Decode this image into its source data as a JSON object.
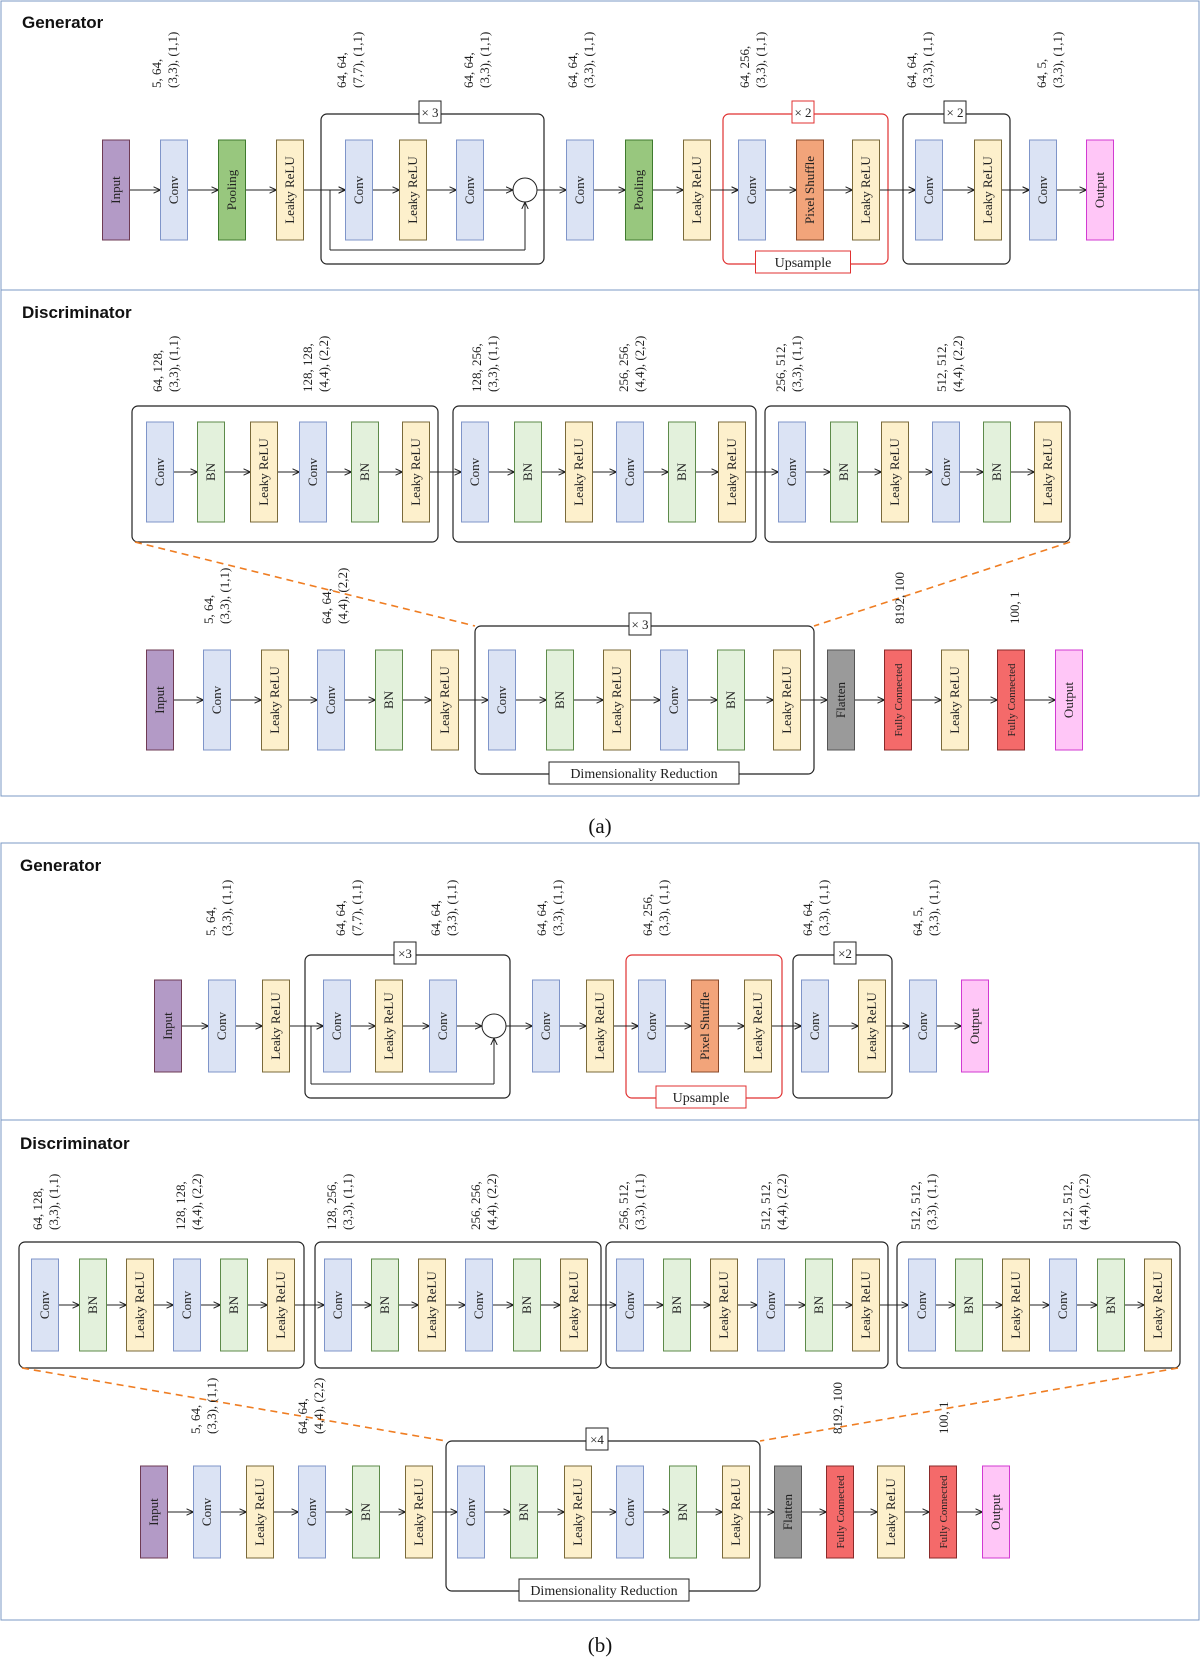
{
  "colors": {
    "input": "#b39ac6",
    "input_border": "#6e3b54",
    "conv": "#dbe3f4",
    "conv_border": "#7f95c9",
    "pooling": "#98c77e",
    "pooling_border": "#3f7a2e",
    "leaky": "#fdf0cc",
    "leaky_border": "#7a6a3a",
    "bn": "#e3f1dc",
    "bn_border": "#5d8a4a",
    "pixel": "#f2a47a",
    "pixel_border": "#8a4a2a",
    "flatten": "#9a9a9a",
    "flatten_border": "#555555",
    "fc": "#f46a6a",
    "fc_border": "#8a2a2a",
    "output": "#ffc6f7",
    "output_border": "#d23ad2",
    "accent_red": "#e03131",
    "dash_orange": "#ef7d22"
  },
  "labels": {
    "input": "Input",
    "conv": "Conv",
    "pooling": "Pooling",
    "leaky": "Leaky ReLU",
    "bn": "BN",
    "pixel": "Pixel Shuffle",
    "flatten": "Flatten",
    "fc": "Fully Connected",
    "output": "Output"
  },
  "panel_a": {
    "caption": "(a)",
    "generator": {
      "title": "Generator",
      "params": [
        "5, 64,\n(3,3), (1,1)",
        "64, 64,\n(7,7), (1,1)",
        "64, 64,\n(3,3), (1,1)",
        "64, 64,\n(3,3), (1,1)",
        "64, 256,\n(3,3), (1,1)",
        "64, 64,\n(3,3), (1,1)",
        "64, 5,\n(3,3), (1,1)"
      ],
      "res_repeat": "× 3",
      "up_repeat": "× 2",
      "tail_repeat": "× 2",
      "upsample_label": "Upsample"
    },
    "discriminator": {
      "title": "Discriminator",
      "top_params": [
        "64, 128,\n(3,3), (1,1)",
        "128, 128,\n(4,4), (2,2)",
        "128, 256,\n(3,3), (1,1)",
        "256, 256,\n(4,4), (2,2)",
        "256, 512,\n(3,3), (1,1)",
        "512, 512,\n(4,4), (2,2)"
      ],
      "bottom_params": [
        "5, 64,\n(3,3), (1,1)",
        "64, 64,\n(4,4), (2,2)",
        "8192, 100",
        "100, 1"
      ],
      "reduction_repeat": "× 3",
      "reduction_label": "Dimensionality Reduction"
    }
  },
  "panel_b": {
    "caption": "(b)",
    "generator": {
      "title": "Generator",
      "params": [
        "5, 64,\n(3,3), (1,1)",
        "64, 64,\n(7,7), (1,1)",
        "64, 64,\n(3,3), (1,1)",
        "64, 64,\n(3,3), (1,1)",
        "64, 256,\n(3,3), (1,1)",
        "64, 64,\n(3,3), (1,1)",
        "64, 5,\n(3,3), (1,1)"
      ],
      "res_repeat": "×3",
      "tail_repeat": "×2",
      "upsample_label": "Upsample"
    },
    "discriminator": {
      "title": "Discriminator",
      "top_params": [
        "64, 128,\n(3,3), (1,1)",
        "128, 128,\n(4,4), (2,2)",
        "128, 256,\n(3,3), (1,1)",
        "256, 256,\n(4,4), (2,2)",
        "256, 512,\n(3,3), (1,1)",
        "512, 512,\n(4,4), (2,2)",
        "512, 512,\n(3,3), (1,1)",
        "512, 512,\n(4,4), (2,2)"
      ],
      "bottom_params": [
        "5, 64,\n(3,3), (1,1)",
        "64, 64,\n(4,4), (2,2)",
        "8192, 100",
        "100, 1"
      ],
      "reduction_repeat": "×4",
      "reduction_label": "Dimensionality Reduction"
    }
  }
}
